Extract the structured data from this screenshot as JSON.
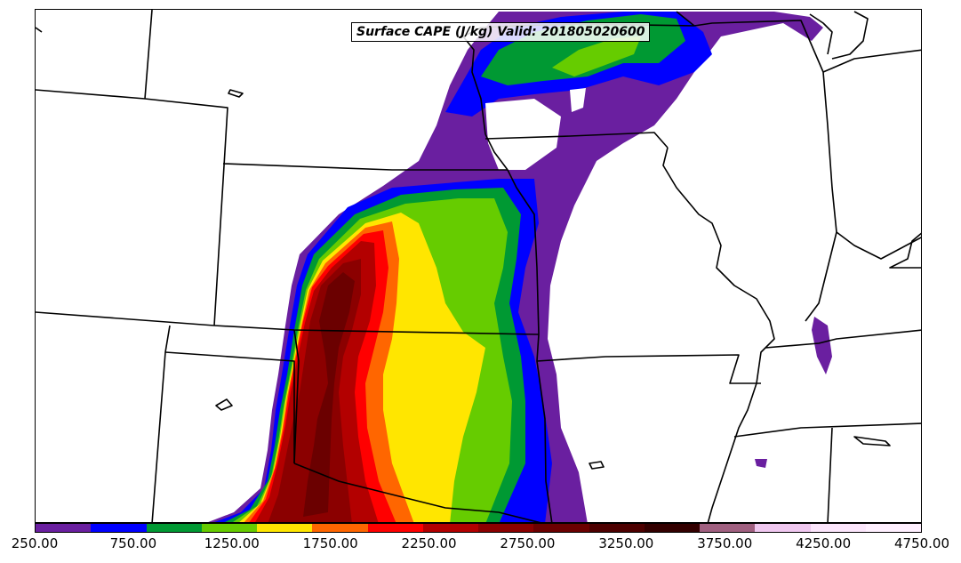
{
  "title": "Surface CAPE (J/kg) Valid: 201805020600",
  "colorbar": {
    "colors": [
      "#6a1fa0",
      "#0000ff",
      "#009933",
      "#66cc00",
      "#ffe600",
      "#ff6600",
      "#ff0000",
      "#b30000",
      "#8b0000",
      "#6b0000",
      "#4d0000",
      "#330000",
      "#a06080",
      "#f0c8f0",
      "#fce6fc",
      "#fff0ff"
    ],
    "labels": [
      "250.00",
      "750.00",
      "1250.00",
      "1750.00",
      "2250.00",
      "2750.00",
      "3250.00",
      "3750.00",
      "4250.00",
      "4750.00"
    ]
  },
  "legend": {
    "palette": {
      "cape_250": "#6a1fa0",
      "cape_500": "#0000ff",
      "cape_750": "#009933",
      "cape_1000": "#66cc00",
      "cape_1250": "#ffe600",
      "cape_1500": "#ff6600",
      "cape_1750": "#ff0000",
      "cape_2000": "#b30000",
      "cape_2250": "#8b0000",
      "cape_2500": "#6b0000",
      "border": "#000000"
    }
  }
}
